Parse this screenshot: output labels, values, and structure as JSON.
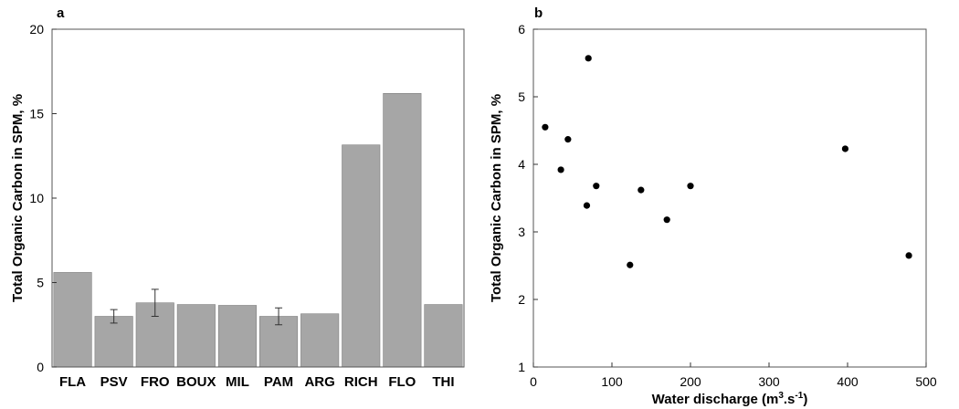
{
  "chart_data": [
    {
      "panel": "a",
      "type": "bar",
      "ylabel": "Total Organic Carbon in SPM, %",
      "ylim": [
        0,
        20
      ],
      "yticks": [
        0,
        5,
        10,
        15,
        20
      ],
      "categories": [
        "FLA",
        "PSV",
        "FRO",
        "BOUX",
        "MIL",
        "PAM",
        "ARG",
        "RICH",
        "FLO",
        "THI"
      ],
      "values": [
        5.6,
        3.0,
        3.8,
        3.7,
        3.65,
        3.0,
        3.15,
        13.15,
        16.2,
        3.7
      ],
      "errors": [
        null,
        0.4,
        0.8,
        null,
        null,
        0.5,
        null,
        null,
        null,
        null
      ],
      "grid": false
    },
    {
      "panel": "b",
      "type": "scatter",
      "xlabel": "Water discharge (m3.s-1)",
      "ylabel": "Total Organic Carbon in SPM, %",
      "xlim": [
        0,
        500
      ],
      "ylim": [
        1,
        6
      ],
      "xticks": [
        0,
        100,
        200,
        300,
        400,
        500
      ],
      "yticks": [
        1,
        2,
        3,
        4,
        5,
        6
      ],
      "x": [
        15,
        35,
        44,
        68,
        70,
        80,
        123,
        137,
        170,
        200,
        397,
        478
      ],
      "y": [
        4.55,
        3.92,
        4.37,
        3.39,
        5.57,
        3.68,
        2.51,
        3.62,
        3.18,
        3.68,
        4.23,
        2.65
      ],
      "grid": false
    }
  ]
}
